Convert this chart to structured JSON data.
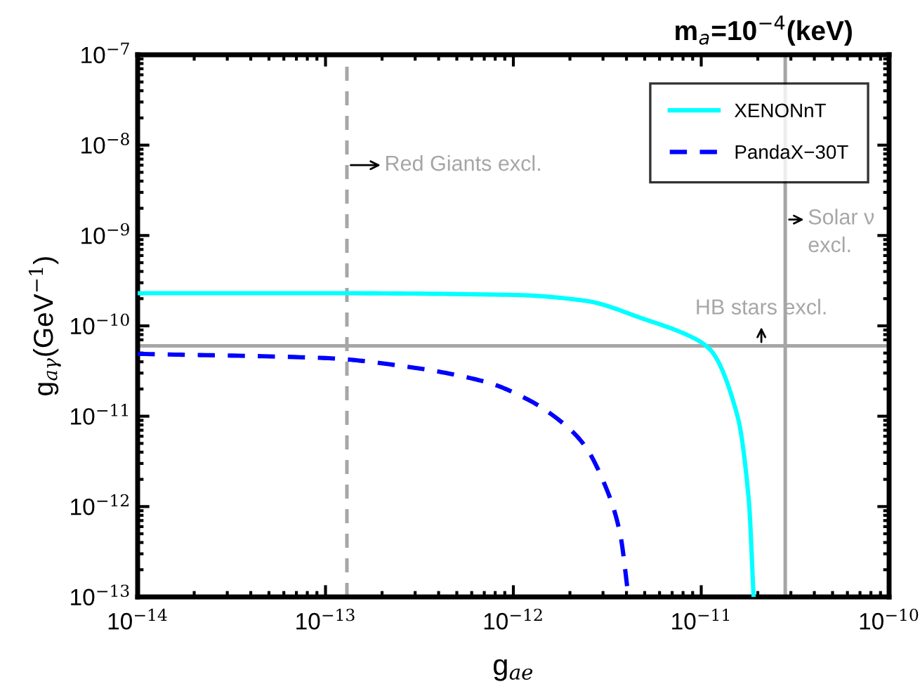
{
  "chart_data": {
    "type": "line",
    "title": "m$_{a}$=10$^{−4}$(keV)",
    "xlabel": "g$_{ae}$",
    "ylabel": "g$_{aγ}$(GeV$^{−1}$)",
    "log": "xy",
    "xlim": [
      1e-14,
      1e-10
    ],
    "ylim": [
      1e-13,
      1e-07
    ],
    "xticks": [
      {
        "value": 1e-14,
        "label": "10$^{−14}$"
      },
      {
        "value": 1e-13,
        "label": "10$^{−13}$"
      },
      {
        "value": 1e-12,
        "label": "10$^{−12}$"
      },
      {
        "value": 1e-11,
        "label": "10$^{−11}$"
      },
      {
        "value": 1e-10,
        "label": "10$^{−10}$"
      }
    ],
    "yticks": [
      {
        "value": 1e-13,
        "label": "10$^{−13}$"
      },
      {
        "value": 1e-12,
        "label": "10$^{−12}$"
      },
      {
        "value": 1e-11,
        "label": "10$^{−11}$"
      },
      {
        "value": 1e-10,
        "label": "10$^{−10}$"
      },
      {
        "value": 1e-09,
        "label": "10$^{−9}$"
      },
      {
        "value": 1e-08,
        "label": "10$^{−8}$"
      },
      {
        "value": 1e-07,
        "label": "10$^{−7}$"
      }
    ],
    "series": [
      {
        "name": "XENONnT",
        "color": "#00ffff",
        "line_style": "solid",
        "x": [
          1e-14,
          1e-13,
          1e-12,
          2.4e-12,
          4.9e-12,
          8.8e-12,
          1.12e-11,
          1.56e-11,
          1.79e-11,
          1.9e-11
        ],
        "values": [
          2.3e-10,
          2.3e-10,
          2.2e-10,
          1.9e-10,
          1.2e-10,
          7.6e-11,
          5.4e-11,
          1e-11,
          1.2e-12,
          1e-13
        ]
      },
      {
        "name": "PandaX−30T",
        "color": "#0000ff",
        "line_style": "dashed",
        "x": [
          1e-14,
          1e-13,
          2.8e-13,
          7.1e-13,
          1.18e-12,
          1.82e-12,
          2.4e-12,
          3.2e-12,
          3.7e-12,
          4.1e-12
        ],
        "values": [
          4.9e-11,
          4.4e-11,
          3.5e-11,
          2.4e-11,
          1.55e-11,
          8.5e-12,
          4.7e-12,
          1.4e-12,
          5e-13,
          1e-13
        ]
      }
    ],
    "ref_lines": [
      {
        "axis": "x",
        "value": 1.3e-13,
        "label": "Red Giants excl.",
        "color": "#a6a6a6",
        "line_style": "dashed"
      },
      {
        "axis": "x",
        "value": 2.8e-11,
        "label": "Solar ν excl.",
        "color": "#a6a6a6",
        "line_style": "solid"
      },
      {
        "axis": "y",
        "value": 6e-11,
        "label": "HB stars excl.",
        "color": "#a6a6a6",
        "line_style": "solid"
      }
    ],
    "legend": "top right",
    "grid": false
  }
}
